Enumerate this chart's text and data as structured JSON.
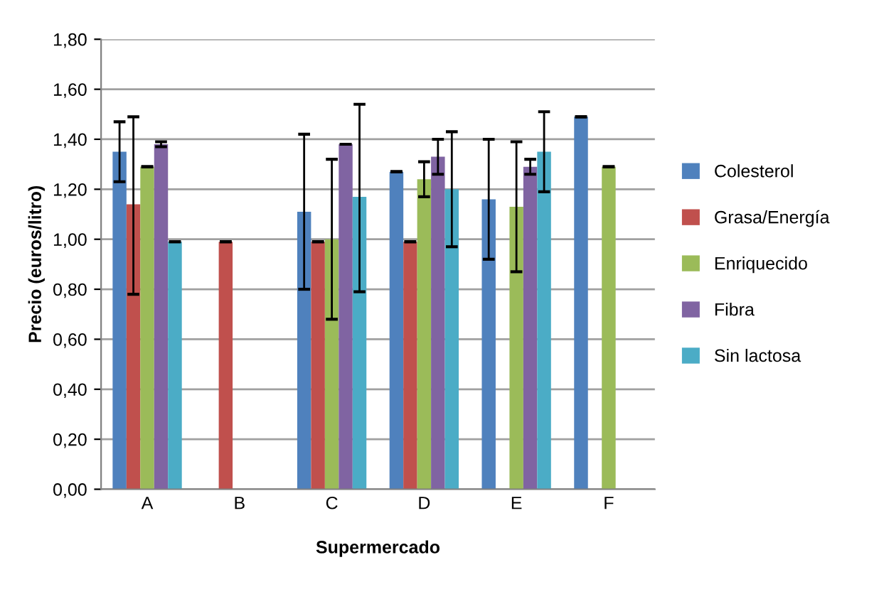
{
  "chart_data": {
    "type": "bar",
    "xlabel": "Supermercado",
    "ylabel": "Precio (euros/litro)",
    "categories": [
      "A",
      "B",
      "C",
      "D",
      "E",
      "F"
    ],
    "series": [
      {
        "name": "Colesterol",
        "color": "#4f81bd",
        "values": [
          1.35,
          null,
          1.11,
          1.27,
          1.16,
          1.49
        ],
        "errors": [
          [
            1.23,
            1.47
          ],
          null,
          [
            0.8,
            1.42
          ],
          0,
          [
            0.92,
            1.4
          ],
          0
        ]
      },
      {
        "name": "Grasa/Energía",
        "color": "#c0504d",
        "values": [
          1.14,
          0.99,
          0.99,
          0.99,
          null,
          null
        ],
        "errors": [
          [
            0.78,
            1.49
          ],
          0,
          0,
          0,
          null,
          null
        ]
      },
      {
        "name": "Enriquecido",
        "color": "#9bbb59",
        "values": [
          1.29,
          null,
          1.0,
          1.24,
          1.13,
          1.29
        ],
        "errors": [
          0,
          null,
          [
            0.68,
            1.32
          ],
          [
            1.17,
            1.31
          ],
          [
            0.87,
            1.39
          ],
          0
        ]
      },
      {
        "name": "Fibra",
        "color": "#8064a2",
        "values": [
          1.38,
          null,
          1.38,
          1.33,
          1.29,
          null
        ],
        "errors": [
          [
            1.37,
            1.39
          ],
          null,
          0,
          [
            1.26,
            1.4
          ],
          [
            1.26,
            1.32
          ],
          null
        ]
      },
      {
        "name": "Sin lactosa",
        "color": "#4bacc6",
        "values": [
          0.99,
          null,
          1.17,
          1.2,
          1.35,
          null
        ],
        "errors": [
          0,
          null,
          [
            0.79,
            1.54
          ],
          [
            0.97,
            1.43
          ],
          [
            1.19,
            1.51
          ],
          null
        ]
      }
    ],
    "ylim": [
      0,
      1.8
    ],
    "yticks": [
      {
        "value": 0,
        "label": "0,00"
      },
      {
        "value": 0.2,
        "label": "0,20"
      },
      {
        "value": 0.4,
        "label": "0,40"
      },
      {
        "value": 0.6,
        "label": "0,60"
      },
      {
        "value": 0.8,
        "label": "0,80"
      },
      {
        "value": 1.0,
        "label": "1,00"
      },
      {
        "value": 1.2,
        "label": "1,20"
      },
      {
        "value": 1.4,
        "label": "1,40"
      },
      {
        "value": 1.6,
        "label": "1,60"
      },
      {
        "value": 1.8,
        "label": "1,80"
      }
    ],
    "grid": "y",
    "legend": "right"
  }
}
